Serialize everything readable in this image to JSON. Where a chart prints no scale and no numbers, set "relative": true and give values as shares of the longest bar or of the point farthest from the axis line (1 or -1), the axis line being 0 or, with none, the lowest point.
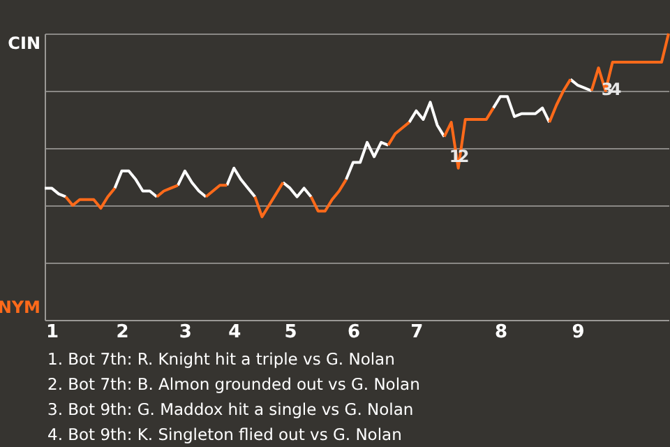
{
  "chart_data": {
    "type": "line",
    "relative": true,
    "categories": [
      null,
      "1",
      null,
      null,
      null,
      null,
      null,
      null,
      null,
      null,
      null,
      "2",
      null,
      null,
      null,
      null,
      null,
      null,
      null,
      null,
      "3",
      null,
      null,
      null,
      null,
      null,
      null,
      "4",
      null,
      null,
      null,
      null,
      null,
      null,
      null,
      "5",
      null,
      null,
      null,
      null,
      null,
      null,
      null,
      null,
      "6",
      null,
      null,
      null,
      null,
      null,
      null,
      null,
      null,
      "7",
      null,
      null,
      null,
      null,
      null,
      null,
      null,
      null,
      null,
      null,
      null,
      "8",
      null,
      null,
      null,
      null,
      null,
      null,
      null,
      null,
      null,
      null,
      "9",
      null,
      null,
      null,
      null,
      null,
      null,
      null,
      null,
      null,
      null,
      null,
      null,
      null
    ],
    "series": [
      {
        "color": "#ffffff",
        "values": [
          0.46,
          0.46,
          0.44,
          0.43,
          null,
          null,
          null,
          null,
          null,
          null,
          0.46,
          0.52,
          0.52,
          0.49,
          0.45,
          0.45,
          0.43,
          null,
          null,
          0.47,
          0.52,
          0.48,
          0.45,
          0.43,
          null,
          null,
          0.47,
          0.53,
          0.49,
          0.46,
          0.43,
          null,
          null,
          null,
          0.48,
          0.46,
          0.43,
          0.46,
          0.43,
          null,
          null,
          null,
          null,
          0.49,
          0.55,
          0.55,
          0.62,
          0.57,
          0.62,
          0.61,
          null,
          null,
          0.69,
          0.73,
          0.7,
          0.76,
          0.68,
          0.64,
          null,
          null,
          null,
          null,
          null,
          null,
          0.74,
          0.78,
          0.78,
          0.71,
          0.72,
          0.72,
          0.72,
          0.74,
          0.69,
          null,
          null,
          0.84,
          0.82,
          0.81,
          0.8,
          null,
          null,
          null,
          null,
          null,
          null,
          null,
          null,
          null,
          null,
          null
        ]
      },
      {
        "color": "#ff6a1a",
        "values": [
          null,
          null,
          null,
          0.43,
          0.4,
          0.42,
          0.42,
          0.42,
          0.39,
          0.43,
          0.46,
          null,
          null,
          null,
          null,
          null,
          0.43,
          0.45,
          0.46,
          0.47,
          null,
          null,
          null,
          0.43,
          0.45,
          0.47,
          0.47,
          null,
          null,
          null,
          0.43,
          0.36,
          0.4,
          0.44,
          0.48,
          null,
          null,
          null,
          0.43,
          0.38,
          0.38,
          0.42,
          0.45,
          0.49,
          null,
          null,
          null,
          null,
          null,
          0.61,
          0.65,
          0.67,
          0.69,
          null,
          null,
          null,
          null,
          0.64,
          0.69,
          0.53,
          0.7,
          0.7,
          0.7,
          0.7,
          0.74,
          null,
          null,
          null,
          null,
          null,
          null,
          null,
          0.69,
          0.75,
          0.8,
          0.84,
          null,
          null,
          0.8,
          0.88,
          0.8,
          0.9,
          0.9,
          0.9,
          0.9,
          0.9,
          0.9,
          0.9,
          0.9,
          1.0
        ]
      }
    ],
    "grid": "y",
    "annotations": [
      "CIN",
      "NYM",
      "1",
      "2",
      "3",
      "4",
      "1. Bot 7th: R. Knight hit a triple vs G. Nolan",
      "2. Bot 7th: B. Almon grounded out vs G. Nolan",
      "3. Bot 9th: G. Maddox hit a single vs G. Nolan",
      "4. Bot 9th: K. Singleton flied out vs G. Nolan"
    ]
  }
}
